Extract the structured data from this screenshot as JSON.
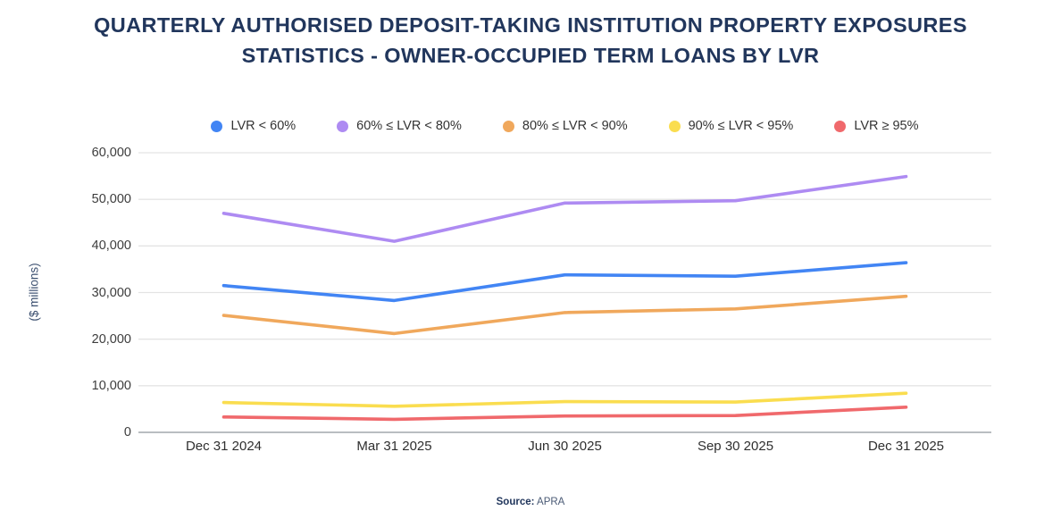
{
  "page": {
    "title": "QUARTERLY AUTHORISED DEPOSIT-TAKING INSTITUTION PROPERTY EXPOSURES STATISTICS - OWNER-OCCUPIED TERM LOANS BY LVR",
    "source_label": "Source:",
    "source_value": "APRA"
  },
  "chart_data": {
    "type": "line",
    "title": "Quarterly authorised deposit-taking institution property exposures statistics - owner-occupied term loans by LVR",
    "xlabel": "",
    "ylabel": "($ millions)",
    "ylim": [
      0,
      60000
    ],
    "y_ticks": [
      0,
      10000,
      20000,
      30000,
      40000,
      50000,
      60000
    ],
    "grid": true,
    "legend_position": "top",
    "categories": [
      "Dec 31 2024",
      "Mar 31 2025",
      "Jun 30 2025",
      "Sep 30 2025",
      "Dec 31 2025"
    ],
    "series": [
      {
        "name": "LVR < 60%",
        "color": "#4285F4",
        "values": [
          31500,
          28300,
          33800,
          33500,
          36400
        ]
      },
      {
        "name": "60% ≤ LVR < 80%",
        "color": "#AE8BF2",
        "values": [
          47000,
          41000,
          49200,
          49700,
          54900
        ]
      },
      {
        "name": "80% ≤ LVR < 90%",
        "color": "#F0A85C",
        "values": [
          25100,
          21200,
          25700,
          26500,
          29200
        ]
      },
      {
        "name": "90% ≤ LVR < 95%",
        "color": "#FADD4F",
        "values": [
          6400,
          5600,
          6600,
          6500,
          8400
        ]
      },
      {
        "name": "LVR ≥ 95%",
        "color": "#F0696C",
        "values": [
          3300,
          2800,
          3500,
          3600,
          5400
        ]
      }
    ],
    "axis_colors": {
      "gridline": "#E4E4E4",
      "baseline": "#B9BDC1"
    }
  }
}
